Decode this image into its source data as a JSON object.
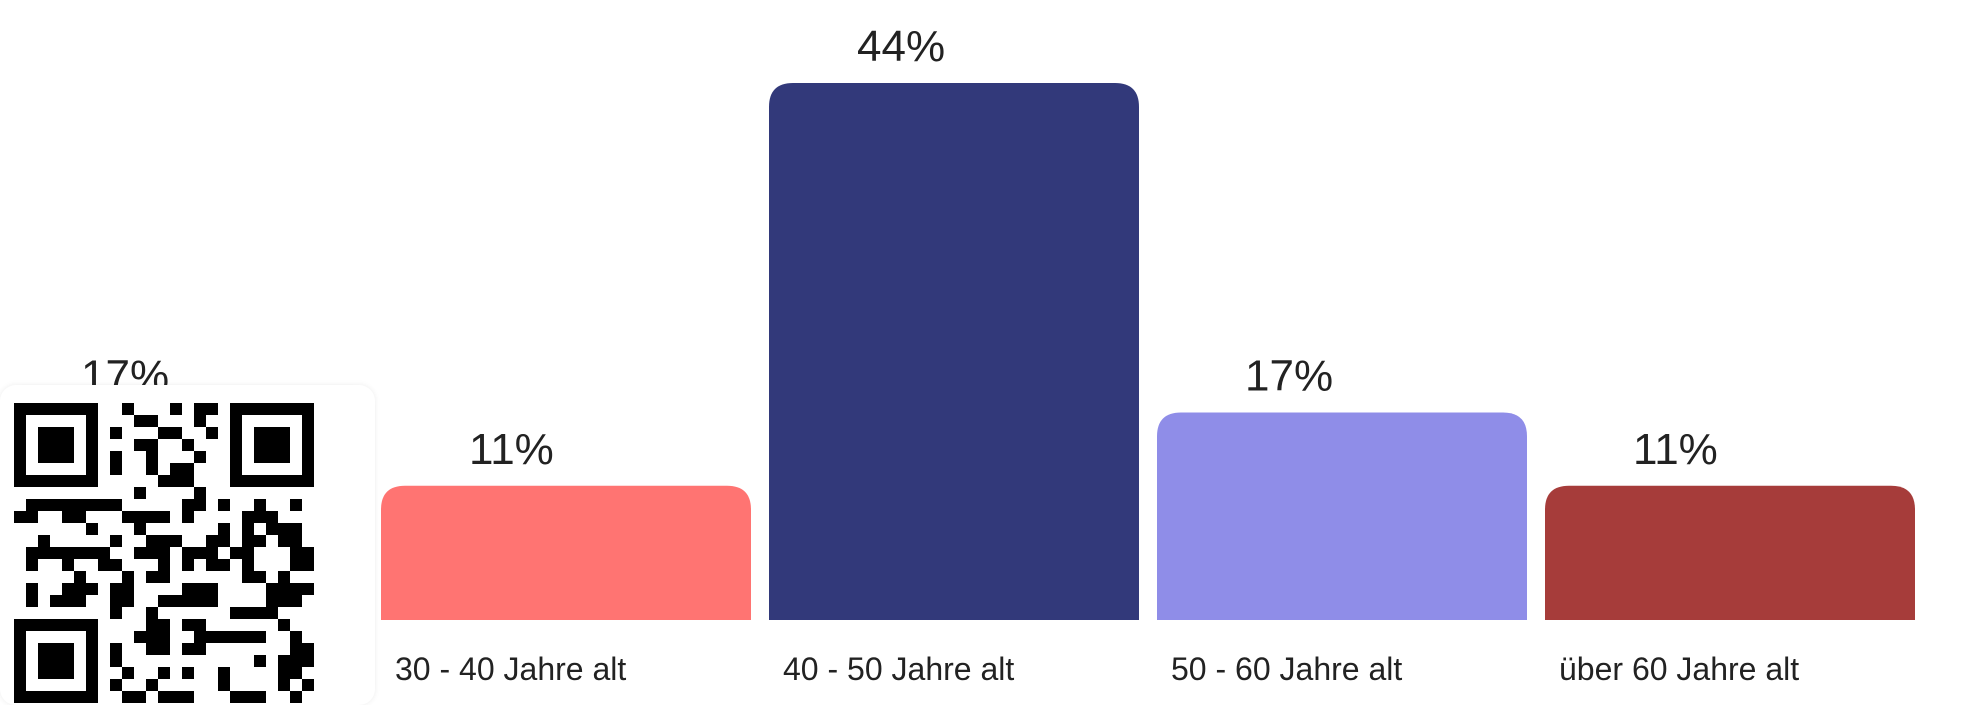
{
  "chart_data": {
    "type": "bar",
    "categories": [
      "",
      "30 - 40 Jahre alt",
      "40 - 50 Jahre alt",
      "50 - 60 Jahre alt",
      "über 60 Jahre alt"
    ],
    "values": [
      17,
      11,
      44,
      17,
      11
    ],
    "value_labels": [
      "17%",
      "11%",
      "44%",
      "17%",
      "11%"
    ],
    "colors": [
      "#5468e0",
      "#ff7472",
      "#32397a",
      "#8f8de8",
      "#a63c3a"
    ],
    "ylim": [
      0,
      44
    ],
    "grid": false,
    "legend": "none"
  },
  "qr_code": {
    "icon": "qr-code-icon"
  }
}
